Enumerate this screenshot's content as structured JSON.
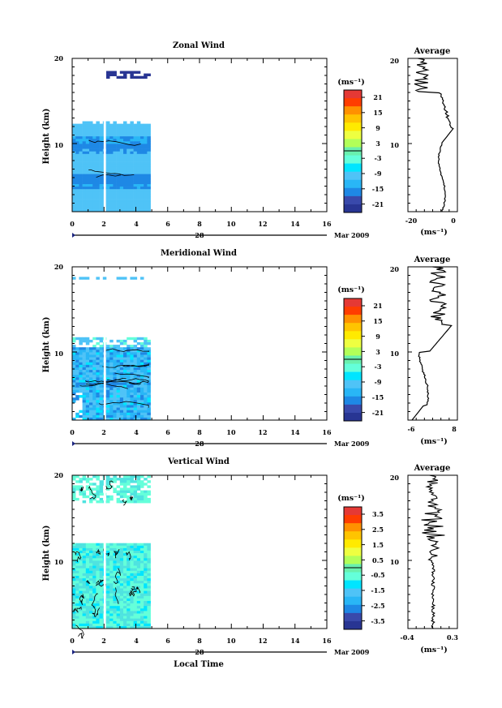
{
  "chart_data": [
    {
      "type": "heatmap",
      "title": "Zonal Wind",
      "ylabel": "Height (km)",
      "yticks": [
        "20",
        "10"
      ],
      "xticks": [
        "0",
        "2",
        "4",
        "6",
        "8",
        "10",
        "12",
        "14",
        "16"
      ],
      "xlim": [
        0,
        16
      ],
      "ylim": [
        2,
        20
      ],
      "date_tick": "28",
      "date_label": "Mar 2009",
      "colorbar": {
        "unit": "(ms⁻¹)",
        "ticks": [
          "21",
          "15",
          "9",
          "3",
          "-3",
          "-9",
          "-15",
          "-21"
        ]
      },
      "profile": {
        "title": "Average",
        "xticks": [
          "-20",
          "0"
        ],
        "xlim": [
          -20,
          2
        ],
        "yticks": [
          "20",
          "10"
        ],
        "unit": "(ms⁻¹)"
      }
    },
    {
      "type": "heatmap",
      "title": "Meridional Wind",
      "ylabel": "Height (km)",
      "yticks": [
        "20",
        "10"
      ],
      "xticks": [
        "0",
        "2",
        "4",
        "6",
        "8",
        "10",
        "12",
        "14",
        "16"
      ],
      "xlim": [
        0,
        16
      ],
      "ylim": [
        2,
        20
      ],
      "date_tick": "28",
      "date_label": "Mar 2009",
      "colorbar": {
        "unit": "(ms⁻¹)",
        "ticks": [
          "21",
          "15",
          "9",
          "3",
          "-3",
          "-9",
          "-15",
          "-21"
        ]
      },
      "profile": {
        "title": "Average",
        "xticks": [
          "-6",
          "8"
        ],
        "xlim": [
          -7,
          9
        ],
        "yticks": [
          "20",
          "10"
        ],
        "unit": "(ms⁻¹)"
      }
    },
    {
      "type": "heatmap",
      "title": "Vertical Wind",
      "ylabel": "Height (km)",
      "xlabel": "Local Time",
      "yticks": [
        "20",
        "10"
      ],
      "xticks": [
        "0",
        "2",
        "4",
        "6",
        "8",
        "10",
        "12",
        "14",
        "16"
      ],
      "xlim": [
        0,
        16
      ],
      "ylim": [
        2,
        20
      ],
      "date_tick": "28",
      "date_label": "Mar 2009",
      "colorbar": {
        "unit": "(ms⁻¹)",
        "ticks": [
          "3.5",
          "2.5",
          "1.5",
          "0.5",
          "-0.5",
          "-1.5",
          "-2.5",
          "-3.5"
        ]
      },
      "profile": {
        "title": "Average",
        "xticks": [
          "-0.4",
          "0.3"
        ],
        "xlim": [
          -0.45,
          0.35
        ],
        "yticks": [
          "20",
          "10"
        ],
        "unit": "(ms⁻¹)"
      }
    }
  ]
}
